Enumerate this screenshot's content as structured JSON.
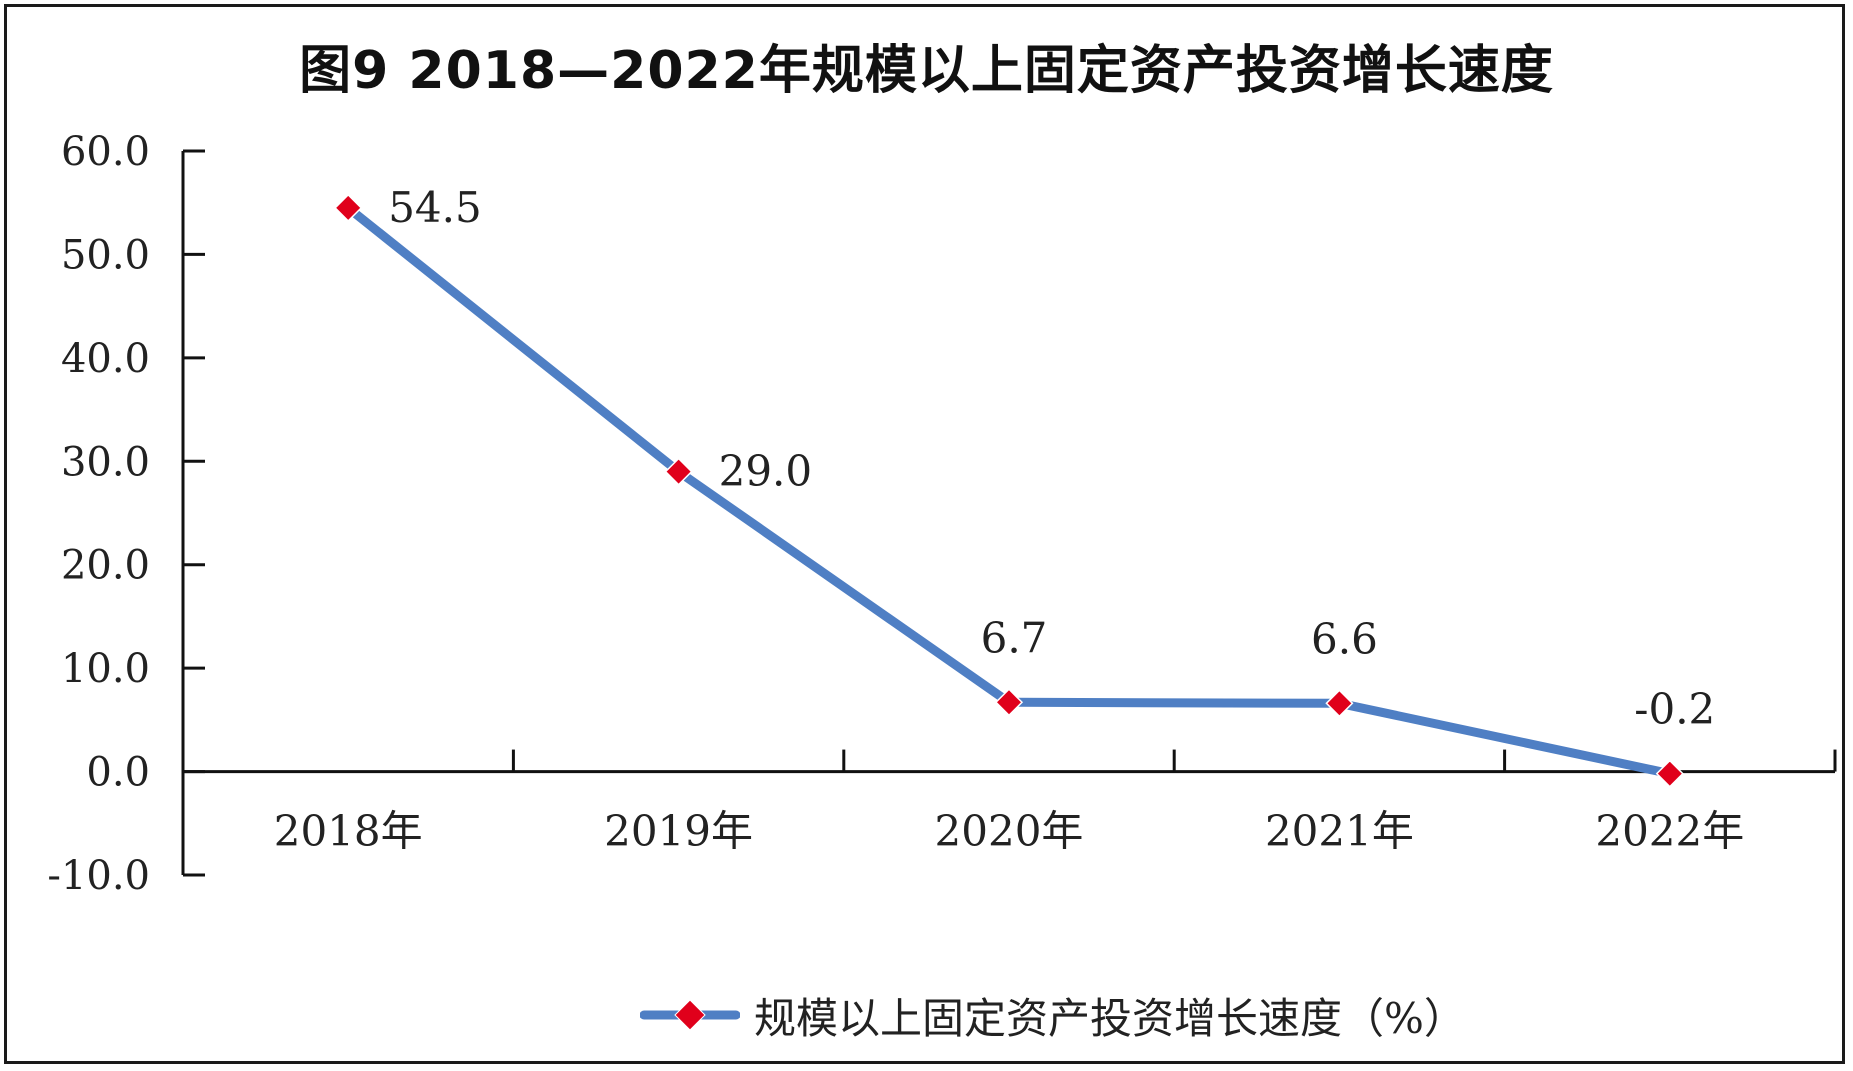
{
  "chart_data": {
    "type": "line",
    "title": "图9  2018—2022年规模以上固定资产投资增长速度",
    "categories": [
      "2018年",
      "2019年",
      "2020年",
      "2021年",
      "2022年"
    ],
    "series": [
      {
        "name": "规模以上固定资产投资增长速度（%）",
        "values": [
          54.5,
          29.0,
          6.7,
          6.6,
          -0.2
        ],
        "labels": [
          "54.5",
          "29.0",
          "6.7",
          "6.6",
          "-0.2"
        ],
        "color": "#4f7fc4",
        "marker_color": "#e0001b"
      }
    ],
    "ylim": [
      -10,
      60
    ],
    "yticks": [
      "60.0",
      "50.0",
      "40.0",
      "30.0",
      "20.0",
      "10.0",
      "0.0",
      "-10.0"
    ],
    "xlabel": "",
    "ylabel": "",
    "grid": false,
    "legend": "bottom"
  }
}
